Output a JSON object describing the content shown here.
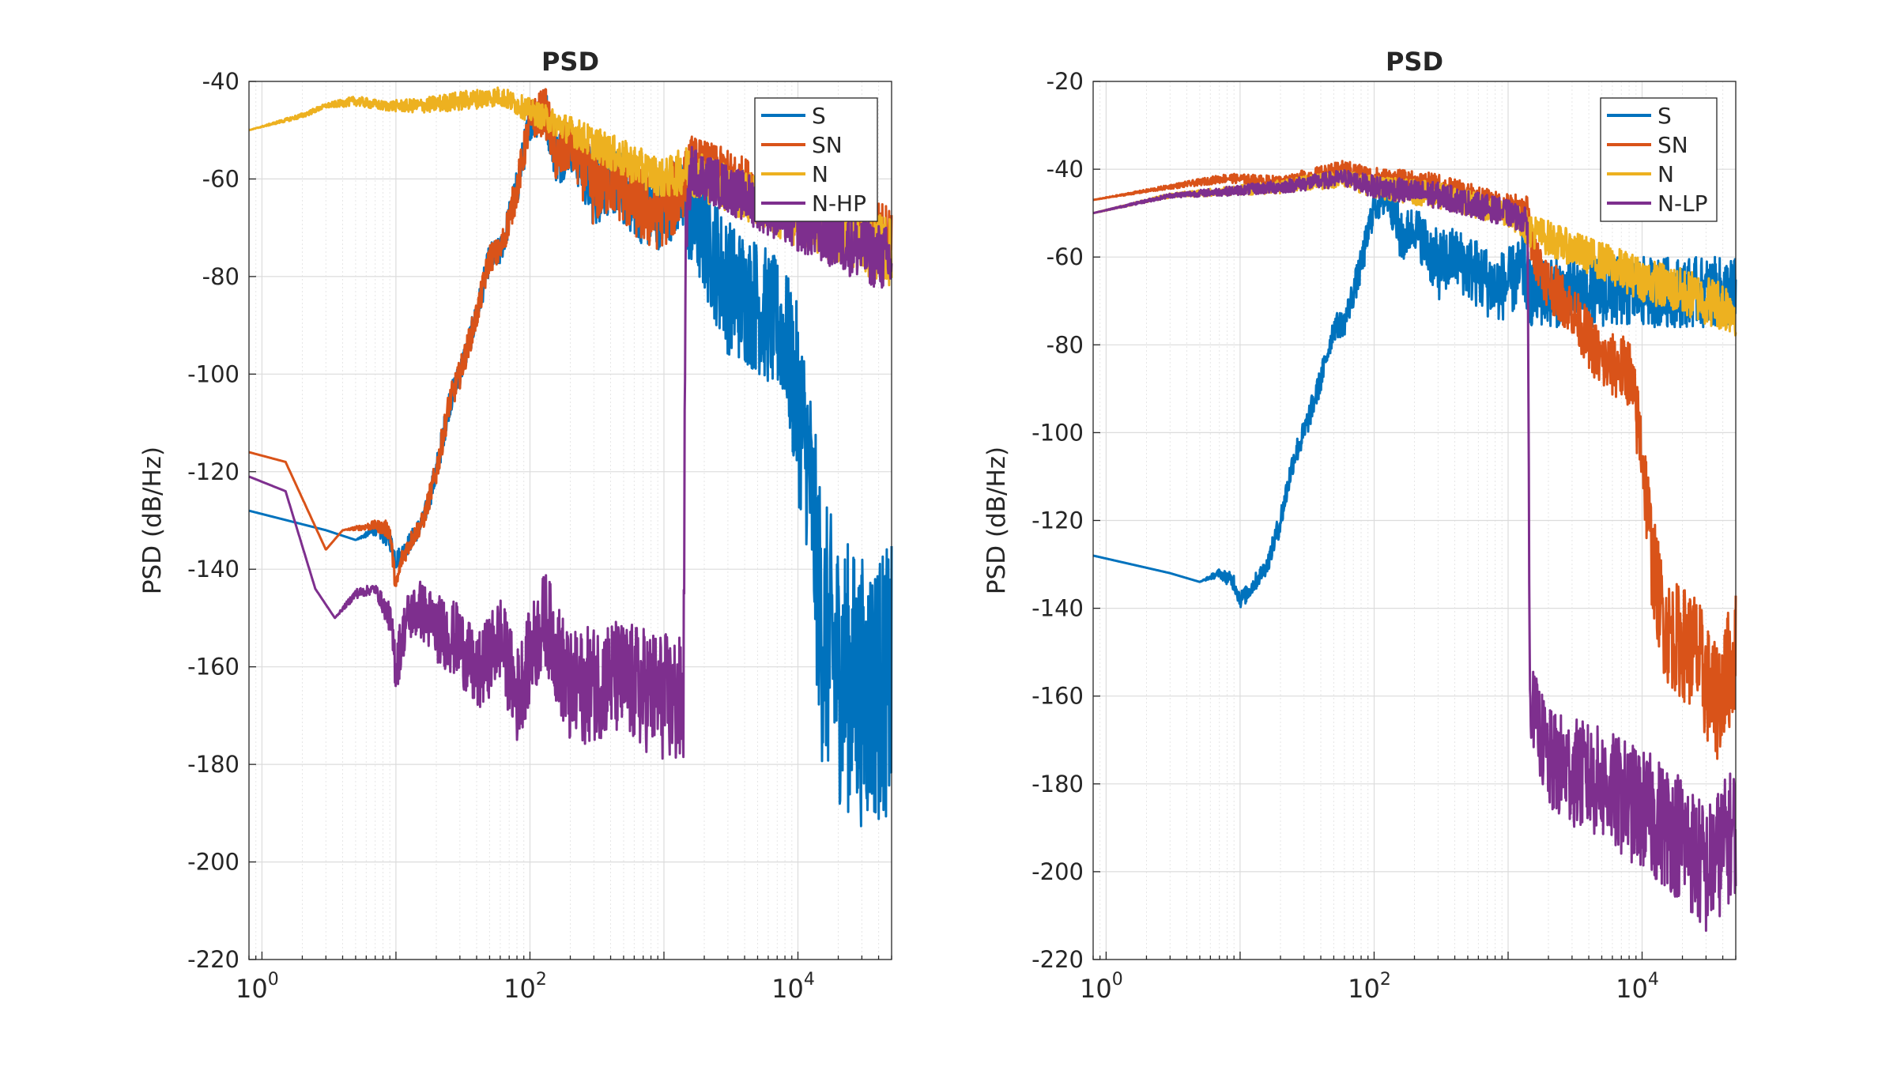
{
  "chart_data": [
    {
      "type": "line",
      "title": "PSD",
      "xlabel": "",
      "ylabel": "PSD (dB/Hz)",
      "x_scale": "log",
      "xlim": [
        0.8,
        50000
      ],
      "ylim": [
        -220,
        -40
      ],
      "yticks": [
        -220,
        -200,
        -180,
        -160,
        -140,
        -120,
        -100,
        -80,
        -60,
        -40
      ],
      "xticks": [
        {
          "value": 1,
          "base": "10",
          "exp": "0"
        },
        {
          "value": 100,
          "base": "10",
          "exp": "2"
        },
        {
          "value": 10000,
          "base": "10",
          "exp": "4"
        }
      ],
      "grid": true,
      "legend_position": "top-right",
      "series": [
        {
          "name": "S",
          "color": "#0072BD",
          "noise": [
            [
              0.8,
              -128,
              0
            ],
            [
              3,
              -132,
              0
            ],
            [
              5,
              -134,
              0
            ],
            [
              7,
              -132,
              1
            ],
            [
              9,
              -134,
              2
            ],
            [
              10,
              -138,
              2
            ],
            [
              11,
              -137,
              2
            ],
            [
              13,
              -134,
              2
            ],
            [
              16,
              -130,
              2
            ],
            [
              20,
              -120,
              3
            ],
            [
              25,
              -106,
              3
            ],
            [
              30,
              -100,
              3
            ],
            [
              40,
              -88,
              3
            ],
            [
              50,
              -76,
              3
            ],
            [
              60,
              -75,
              3
            ],
            [
              80,
              -62,
              4
            ],
            [
              100,
              -48,
              4
            ],
            [
              130,
              -46,
              5
            ],
            [
              160,
              -56,
              6
            ],
            [
              200,
              -53,
              5
            ],
            [
              300,
              -62,
              8
            ],
            [
              400,
              -60,
              7
            ],
            [
              600,
              -64,
              8
            ],
            [
              800,
              -67,
              8
            ],
            [
              1000,
              -66,
              8
            ],
            [
              1300,
              -63,
              8
            ],
            [
              1450,
              -68,
              8
            ],
            [
              1600,
              -68,
              10
            ],
            [
              2000,
              -72,
              12
            ],
            [
              3000,
              -82,
              14
            ],
            [
              5000,
              -86,
              14
            ],
            [
              8000,
              -92,
              14
            ],
            [
              10000,
              -106,
              20
            ],
            [
              12000,
              -118,
              20
            ],
            [
              15000,
              -152,
              28
            ],
            [
              20000,
              -160,
              28
            ],
            [
              30000,
              -165,
              28
            ],
            [
              50000,
              -163,
              28
            ]
          ]
        },
        {
          "name": "SN",
          "color": "#D95319",
          "noise": [
            [
              0.8,
              -116,
              0
            ],
            [
              1.5,
              -118,
              0
            ],
            [
              3,
              -136,
              0
            ],
            [
              4,
              -132,
              0
            ],
            [
              7,
              -131,
              1
            ],
            [
              9,
              -132,
              2
            ],
            [
              10,
              -144,
              2
            ],
            [
              11,
              -138,
              2
            ],
            [
              13,
              -134,
              2
            ],
            [
              16,
              -130,
              2
            ],
            [
              20,
              -120,
              3
            ],
            [
              25,
              -106,
              3
            ],
            [
              30,
              -100,
              3
            ],
            [
              40,
              -88,
              3
            ],
            [
              50,
              -76,
              3
            ],
            [
              60,
              -75,
              3
            ],
            [
              80,
              -62,
              4
            ],
            [
              100,
              -48,
              4
            ],
            [
              130,
              -46,
              5
            ],
            [
              160,
              -56,
              6
            ],
            [
              200,
              -53,
              5
            ],
            [
              300,
              -62,
              8
            ],
            [
              400,
              -60,
              7
            ],
            [
              600,
              -64,
              8
            ],
            [
              800,
              -67,
              8
            ],
            [
              1000,
              -66,
              8
            ],
            [
              1300,
              -63,
              8
            ],
            [
              1450,
              -60,
              6
            ],
            [
              1600,
              -56,
              5
            ],
            [
              3000,
              -59,
              5
            ],
            [
              10000,
              -66,
              6
            ],
            [
              50000,
              -72,
              7
            ]
          ]
        },
        {
          "name": "N",
          "color": "#EDB120",
          "noise": [
            [
              0.8,
              -50,
              0
            ],
            [
              2,
              -47,
              0.5
            ],
            [
              3,
              -45,
              0.5
            ],
            [
              5,
              -44,
              1
            ],
            [
              8,
              -45,
              1
            ],
            [
              15,
              -45,
              1.5
            ],
            [
              30,
              -44,
              2
            ],
            [
              60,
              -43,
              2
            ],
            [
              100,
              -46,
              2.5
            ],
            [
              200,
              -50,
              3
            ],
            [
              500,
              -56,
              4
            ],
            [
              1000,
              -60,
              4
            ],
            [
              1500,
              -58,
              5
            ],
            [
              3000,
              -62,
              5
            ],
            [
              10000,
              -68,
              6
            ],
            [
              50000,
              -75,
              7
            ]
          ]
        },
        {
          "name": "N-HP",
          "color": "#7E2F8E",
          "noise": [
            [
              0.8,
              -121,
              0
            ],
            [
              1.5,
              -124,
              0
            ],
            [
              2.5,
              -144,
              0
            ],
            [
              3.5,
              -150,
              0
            ],
            [
              5,
              -145,
              1
            ],
            [
              7,
              -144,
              1
            ],
            [
              9,
              -150,
              3
            ],
            [
              10,
              -160,
              6
            ],
            [
              12,
              -150,
              5
            ],
            [
              15,
              -148,
              6
            ],
            [
              20,
              -152,
              7
            ],
            [
              30,
              -155,
              8
            ],
            [
              40,
              -162,
              8
            ],
            [
              60,
              -154,
              9
            ],
            [
              80,
              -166,
              10
            ],
            [
              100,
              -158,
              10
            ],
            [
              130,
              -150,
              10
            ],
            [
              200,
              -165,
              12
            ],
            [
              400,
              -162,
              12
            ],
            [
              800,
              -165,
              13
            ],
            [
              1400,
              -168,
              14
            ],
            [
              1450,
              -72,
              6
            ],
            [
              1600,
              -58,
              5
            ],
            [
              3000,
              -62,
              5
            ],
            [
              10000,
              -69,
              6
            ],
            [
              50000,
              -77,
              7
            ]
          ]
        }
      ]
    },
    {
      "type": "line",
      "title": "PSD",
      "xlabel": "",
      "ylabel": "PSD (dB/Hz)",
      "x_scale": "log",
      "xlim": [
        0.8,
        50000
      ],
      "ylim": [
        -220,
        -20
      ],
      "yticks": [
        -220,
        -200,
        -180,
        -160,
        -140,
        -120,
        -100,
        -80,
        -60,
        -40,
        -20
      ],
      "xticks": [
        {
          "value": 1,
          "base": "10",
          "exp": "0"
        },
        {
          "value": 100,
          "base": "10",
          "exp": "2"
        },
        {
          "value": 10000,
          "base": "10",
          "exp": "4"
        }
      ],
      "grid": true,
      "legend_position": "top-right",
      "series": [
        {
          "name": "S",
          "color": "#0072BD",
          "noise": [
            [
              0.8,
              -128,
              0
            ],
            [
              3,
              -132,
              0
            ],
            [
              5,
              -134,
              0
            ],
            [
              7,
              -132,
              1
            ],
            [
              9,
              -134,
              2
            ],
            [
              10,
              -138,
              2
            ],
            [
              11,
              -137,
              2
            ],
            [
              13,
              -134,
              2
            ],
            [
              16,
              -130,
              2
            ],
            [
              20,
              -120,
              3
            ],
            [
              25,
              -106,
              3
            ],
            [
              30,
              -100,
              3
            ],
            [
              40,
              -88,
              3
            ],
            [
              50,
              -76,
              3
            ],
            [
              60,
              -75,
              3
            ],
            [
              80,
              -62,
              4
            ],
            [
              100,
              -48,
              4
            ],
            [
              130,
              -46,
              5
            ],
            [
              160,
              -56,
              6
            ],
            [
              200,
              -53,
              5
            ],
            [
              300,
              -62,
              8
            ],
            [
              400,
              -60,
              7
            ],
            [
              600,
              -64,
              8
            ],
            [
              800,
              -67,
              8
            ],
            [
              1000,
              -66,
              8
            ],
            [
              1300,
              -63,
              8
            ],
            [
              1450,
              -68,
              8
            ]
          ]
        },
        {
          "name": "SN",
          "color": "#D95319",
          "noise": [
            [
              0.8,
              -47,
              0
            ],
            [
              3,
              -44,
              0.5
            ],
            [
              8,
              -42,
              1
            ],
            [
              20,
              -43,
              1.5
            ],
            [
              60,
              -40,
              2
            ],
            [
              100,
              -42,
              2.5
            ],
            [
              300,
              -44,
              3
            ],
            [
              800,
              -48,
              3
            ],
            [
              1400,
              -50,
              4
            ],
            [
              1500,
              -58,
              5
            ],
            [
              2000,
              -66,
              6
            ],
            [
              3000,
              -72,
              6
            ],
            [
              5000,
              -84,
              7
            ],
            [
              8000,
              -86,
              8
            ],
            [
              10000,
              -104,
              10
            ],
            [
              12000,
              -130,
              12
            ],
            [
              15000,
              -145,
              12
            ],
            [
              25000,
              -150,
              14
            ],
            [
              35000,
              -162,
              14
            ],
            [
              50000,
              -150,
              14
            ]
          ]
        },
        {
          "name": "N",
          "color": "#EDB120",
          "noise": [
            [
              0.8,
              -50,
              0
            ],
            [
              3,
              -46,
              0.5
            ],
            [
              8,
              -45,
              1
            ],
            [
              20,
              -44,
              1.5
            ],
            [
              60,
              -42,
              2
            ],
            [
              100,
              -44,
              2.5
            ],
            [
              300,
              -46,
              3
            ],
            [
              1000,
              -50,
              3
            ],
            [
              1500,
              -54,
              4
            ],
            [
              3000,
              -58,
              4
            ],
            [
              10000,
              -65,
              5
            ],
            [
              50000,
              -72,
              6
            ]
          ]
        },
        {
          "name": "N-LP",
          "color": "#7E2F8E",
          "noise": [
            [
              0.8,
              -50,
              0
            ],
            [
              3,
              -46,
              0.5
            ],
            [
              8,
              -45,
              1
            ],
            [
              20,
              -44,
              1.5
            ],
            [
              60,
              -42,
              2
            ],
            [
              100,
              -44,
              2.5
            ],
            [
              300,
              -46,
              3
            ],
            [
              1000,
              -50,
              3
            ],
            [
              1400,
              -52,
              3
            ],
            [
              1450,
              -160,
              8
            ],
            [
              2000,
              -175,
              12
            ],
            [
              5000,
              -180,
              13
            ],
            [
              10000,
              -186,
              14
            ],
            [
              20000,
              -192,
              15
            ],
            [
              30000,
              -200,
              15
            ],
            [
              50000,
              -190,
              15
            ]
          ]
        }
      ]
    }
  ]
}
